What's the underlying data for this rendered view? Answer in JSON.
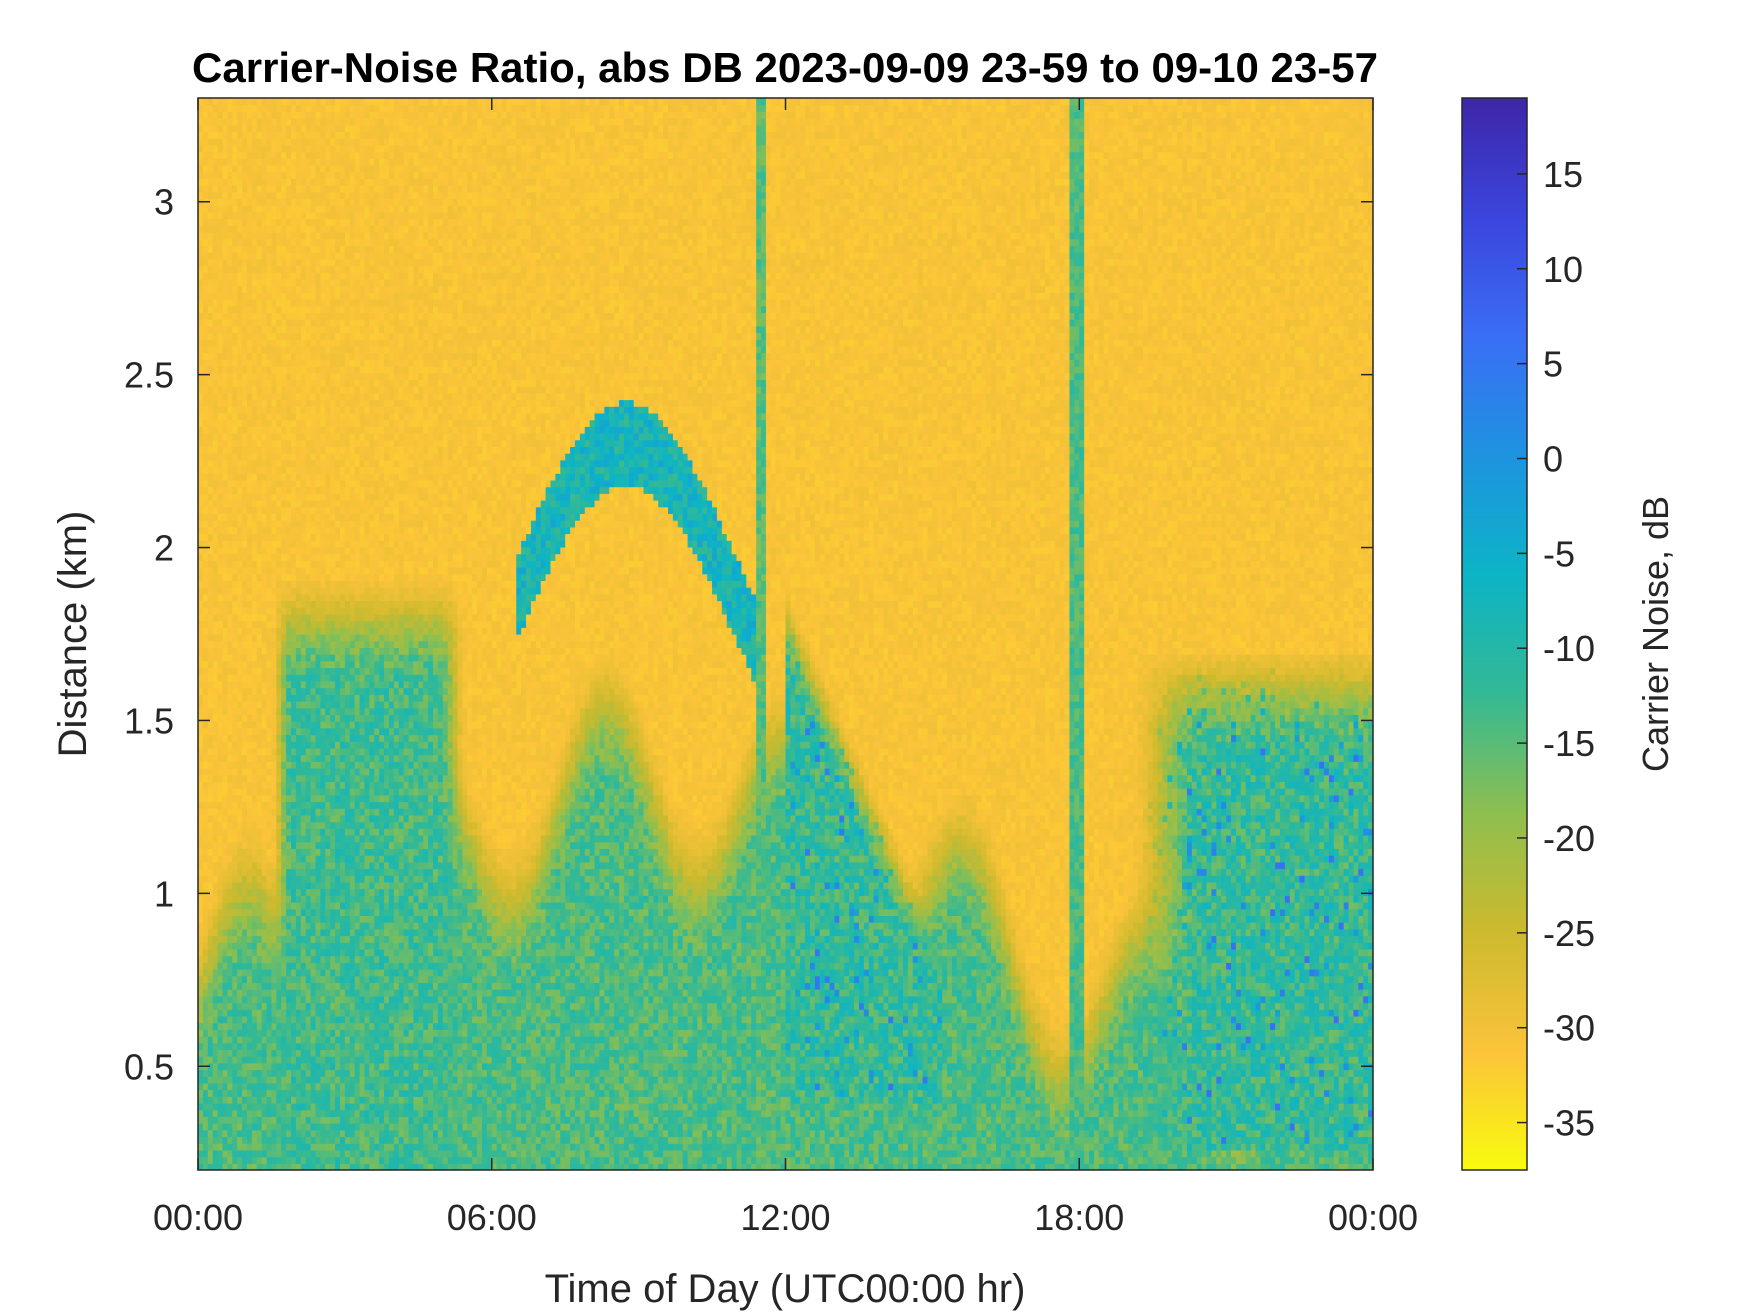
{
  "chart_data": {
    "type": "heatmap",
    "title": "Carrier-Noise Ratio, abs DB 2023-09-09 23-59 to 09-10 23-57",
    "xlabel": "Time of Day (UTC00:00 hr)",
    "ylabel": "Distance (km)",
    "x_range_hours": [
      0,
      24
    ],
    "x_ticks": [
      0,
      6,
      12,
      18,
      24
    ],
    "x_tick_labels": [
      "00:00",
      "06:00",
      "12:00",
      "18:00",
      "00:00"
    ],
    "ylim": [
      0.2,
      3.3
    ],
    "y_ticks": [
      0.5,
      1,
      1.5,
      2,
      2.5,
      3
    ],
    "y_tick_labels": [
      "0.5",
      "1",
      "1.5",
      "2",
      "2.5",
      "3"
    ],
    "colorbar": {
      "label": "Carrier Noise, dB",
      "clim": [
        -37.5,
        19
      ],
      "ticks": [
        15,
        10,
        5,
        0,
        -5,
        -10,
        -15,
        -20,
        -25,
        -30,
        -35
      ],
      "tick_labels": [
        "15",
        "10",
        "5",
        "0",
        "-5",
        "-10",
        "-15",
        "-20",
        "-25",
        "-30",
        "-35"
      ],
      "colormap": "parula",
      "colormap_stops": [
        "#f9fb0e",
        "#fbc33a",
        "#cdba2e",
        "#8ebf4f",
        "#33b995",
        "#0cb4c6",
        "#1e93e0",
        "#3a6ef5",
        "#3b45dd",
        "#3e26a8"
      ]
    },
    "background_value_db": -31,
    "features": [
      {
        "name": "near-ground boundary layer",
        "time_hours": [
          0,
          24
        ],
        "distance_km": [
          0.2,
          1.0
        ],
        "value_db": -14
      },
      {
        "name": "mixed layer growth",
        "time_hours": [
          1.5,
          5.5
        ],
        "distance_km": [
          0.2,
          1.9
        ],
        "value_db": -13
      },
      {
        "name": "cloud band",
        "time_hours": [
          6.5,
          9.5
        ],
        "distance_km": [
          1.8,
          2.35
        ],
        "value_db": -8
      },
      {
        "name": "afternoon convective layer",
        "time_hours": [
          12,
          15
        ],
        "distance_km": [
          0.5,
          1.9
        ],
        "value_db": -12
      },
      {
        "name": "evening layer",
        "time_hours": [
          19,
          24
        ],
        "distance_km": [
          0.3,
          1.7
        ],
        "value_db": -12
      },
      {
        "name": "vertical streak",
        "time_hours": [
          11.4,
          11.6
        ],
        "distance_km": [
          0.2,
          3.3
        ],
        "value_db": -15
      },
      {
        "name": "vertical streak",
        "time_hours": [
          17.85,
          18.1
        ],
        "distance_km": [
          0.2,
          3.3
        ],
        "value_db": -14
      }
    ]
  }
}
